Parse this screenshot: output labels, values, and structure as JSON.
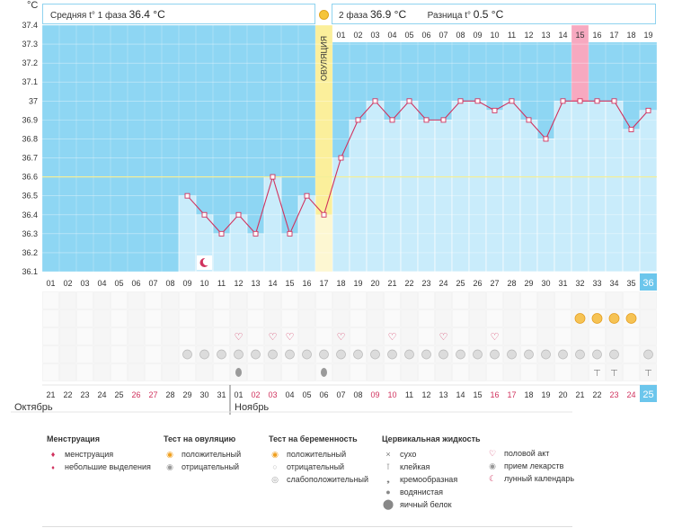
{
  "header": {
    "phase1_label": "Средняя t° 1 фаза",
    "phase1_value": "36.4 °C",
    "phase2_label": "2 фаза",
    "phase2_value": "36.9 °C",
    "diff_label": "Разница t°",
    "diff_value": "0.5 °C",
    "unit": "°C"
  },
  "chart_data": {
    "type": "line",
    "ylabel": "°C",
    "ylim": [
      36.1,
      37.4
    ],
    "yticks": [
      "37.4",
      "37.3",
      "37.2",
      "37.1",
      "37",
      "36.9",
      "36.8",
      "36.7",
      "36.6",
      "36.5",
      "36.4",
      "36.3",
      "36.2",
      "36.1"
    ],
    "coverline": 36.6,
    "ovulation_label": "ОВУЛЯЦИЯ",
    "ovulation_cycle_day": "17",
    "highlight_top_day": "15",
    "cycle_days": [
      "01",
      "02",
      "03",
      "04",
      "05",
      "06",
      "07",
      "08",
      "09",
      "10",
      "11",
      "12",
      "13",
      "14",
      "15",
      "16",
      "17",
      "18",
      "19",
      "20",
      "21",
      "22",
      "23",
      "24",
      "25",
      "26",
      "27",
      "28",
      "29",
      "30",
      "31",
      "32",
      "33",
      "34",
      "35",
      "36"
    ],
    "top_day_numbers": [
      "01",
      "02",
      "03",
      "04",
      "05",
      "06",
      "07",
      "08",
      "09",
      "10",
      "11",
      "12",
      "13",
      "14",
      "15",
      "16",
      "17",
      "18",
      "19"
    ],
    "temperatures": [
      null,
      null,
      null,
      null,
      null,
      null,
      null,
      null,
      36.5,
      36.4,
      36.3,
      36.4,
      36.3,
      36.6,
      36.3,
      36.5,
      36.4,
      36.7,
      36.9,
      37.0,
      36.9,
      37.0,
      36.9,
      36.9,
      37.0,
      37.0,
      36.95,
      37.0,
      36.9,
      36.8,
      37.0,
      37.0,
      37.0,
      37.0,
      36.85,
      36.95
    ],
    "calendar_dates": [
      "21",
      "22",
      "23",
      "24",
      "25",
      "26",
      "27",
      "28",
      "29",
      "30",
      "31",
      "01",
      "02",
      "03",
      "04",
      "05",
      "06",
      "07",
      "08",
      "09",
      "10",
      "11",
      "12",
      "13",
      "14",
      "15",
      "16",
      "17",
      "18",
      "19",
      "20",
      "21",
      "22",
      "23",
      "24",
      "25"
    ],
    "weekend_dates_idx": [
      5,
      6,
      12,
      13,
      19,
      20,
      26,
      27,
      33,
      34
    ],
    "months": [
      "Октябрь",
      "Ноябрь"
    ],
    "rows": {
      "menstruation": [],
      "moon_day_index": 9,
      "pregnancy_test_positive": [
        31,
        32,
        33,
        34
      ],
      "ovulation_test": [],
      "sex": [
        11,
        13,
        14,
        17,
        20,
        23,
        26
      ],
      "medicine": [
        8,
        9,
        10,
        11,
        12,
        13,
        14,
        15,
        16,
        17,
        18,
        19,
        20,
        21,
        22,
        23,
        24,
        25,
        26,
        27,
        28,
        29,
        30,
        31,
        32,
        33,
        35
      ],
      "fluid_water": [
        11,
        16
      ],
      "fluid_sticky": [
        32,
        33,
        35
      ]
    }
  },
  "legend": {
    "menstruation": {
      "title": "Менструация",
      "items": [
        "менструация",
        "небольшие выделения"
      ]
    },
    "ovulation_test": {
      "title": "Тест на овуляцию",
      "items": [
        "положительный",
        "отрицательный"
      ]
    },
    "pregnancy_test": {
      "title": "Тест на беременность",
      "items": [
        "положительный",
        "отрицательный",
        "слабоположительный"
      ]
    },
    "cervical": {
      "title": "Цервикальная жидкость",
      "items": [
        "сухо",
        "клейкая",
        "кремообразная",
        "водянистая",
        "яичный белок"
      ]
    },
    "other": {
      "items": [
        "половой акт",
        "прием лекарств",
        "лунный календарь"
      ]
    }
  },
  "colors": {
    "sky": "#8ed6f3",
    "bar": "#c9ecfb",
    "line": "#d0325e",
    "ovulation": "#fbef9b",
    "highlight": "#f7a9c0",
    "weekend": "#d0325e"
  }
}
